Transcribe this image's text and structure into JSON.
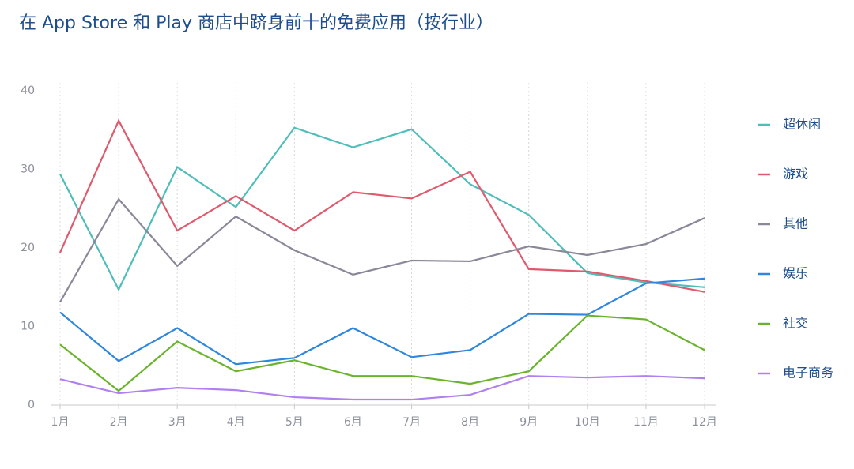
{
  "chart_data": {
    "type": "line",
    "title": "在 App Store 和 Play 商店中跻身前十的免费应用（按行业）",
    "categories": [
      "1月",
      "2月",
      "3月",
      "4月",
      "5月",
      "6月",
      "7月",
      "8月",
      "9月",
      "10月",
      "11月",
      "12月"
    ],
    "series": [
      {
        "name": "超休闲",
        "color": "#4fbdba",
        "values": [
          29.4,
          14.7,
          30.3,
          25.2,
          35.3,
          32.8,
          35.1,
          28.1,
          24.2,
          16.8,
          15.6,
          15.0
        ]
      },
      {
        "name": "游戏",
        "color": "#e05a6d",
        "values": [
          19.4,
          36.2,
          22.2,
          26.6,
          22.2,
          27.1,
          26.3,
          29.7,
          17.3,
          17.0,
          15.8,
          14.4
        ]
      },
      {
        "name": "其他",
        "color": "#8a8799",
        "values": [
          13.1,
          26.2,
          17.7,
          24.0,
          19.7,
          16.6,
          18.4,
          18.3,
          20.2,
          19.1,
          20.5,
          23.8
        ]
      },
      {
        "name": "娱乐",
        "color": "#2e86de",
        "values": [
          11.8,
          5.6,
          9.8,
          5.2,
          6.0,
          9.8,
          6.1,
          7.0,
          11.6,
          11.5,
          15.5,
          16.1
        ]
      },
      {
        "name": "社交",
        "color": "#6ab42d",
        "values": [
          7.7,
          1.8,
          8.1,
          4.3,
          5.7,
          3.7,
          3.7,
          2.7,
          4.3,
          11.4,
          10.9,
          7.0
        ]
      },
      {
        "name": "电子商务",
        "color": "#b07ff0",
        "values": [
          3.3,
          1.5,
          2.2,
          1.9,
          1.0,
          0.7,
          0.7,
          1.3,
          3.7,
          3.5,
          3.7,
          3.4
        ]
      }
    ],
    "ylim": [
      0,
      40
    ],
    "yticks": [
      0,
      10,
      20,
      30,
      40
    ],
    "grid": true,
    "legend": "right"
  }
}
